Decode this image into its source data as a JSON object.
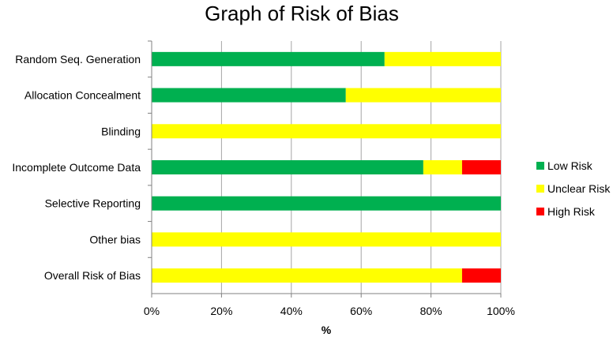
{
  "chart_data": {
    "type": "bar",
    "orientation": "horizontal",
    "stacked": true,
    "title": "Graph of Risk of Bias",
    "xlabel": "%",
    "ylabel": "",
    "xlim": [
      0,
      100
    ],
    "x_ticks": [
      "0%",
      "20%",
      "40%",
      "60%",
      "80%",
      "100%"
    ],
    "grid": "vertical",
    "legend_position": "right",
    "categories": [
      "Random Seq. Generation",
      "Allocation Concealment",
      "Blinding",
      "Incomplete Outcome Data",
      "Selective Reporting",
      "Other bias",
      "Overall Risk of Bias"
    ],
    "series": [
      {
        "name": "Low Risk",
        "color": "#00b050",
        "values": [
          66.7,
          55.6,
          0,
          77.8,
          100,
          0,
          0
        ]
      },
      {
        "name": "Unclear Risk",
        "color": "#ffff00",
        "values": [
          33.3,
          44.4,
          100,
          11.1,
          0,
          100,
          88.9
        ]
      },
      {
        "name": "High Risk",
        "color": "#ff0000",
        "values": [
          0,
          0,
          0,
          11.1,
          0,
          0,
          11.1
        ]
      }
    ]
  }
}
